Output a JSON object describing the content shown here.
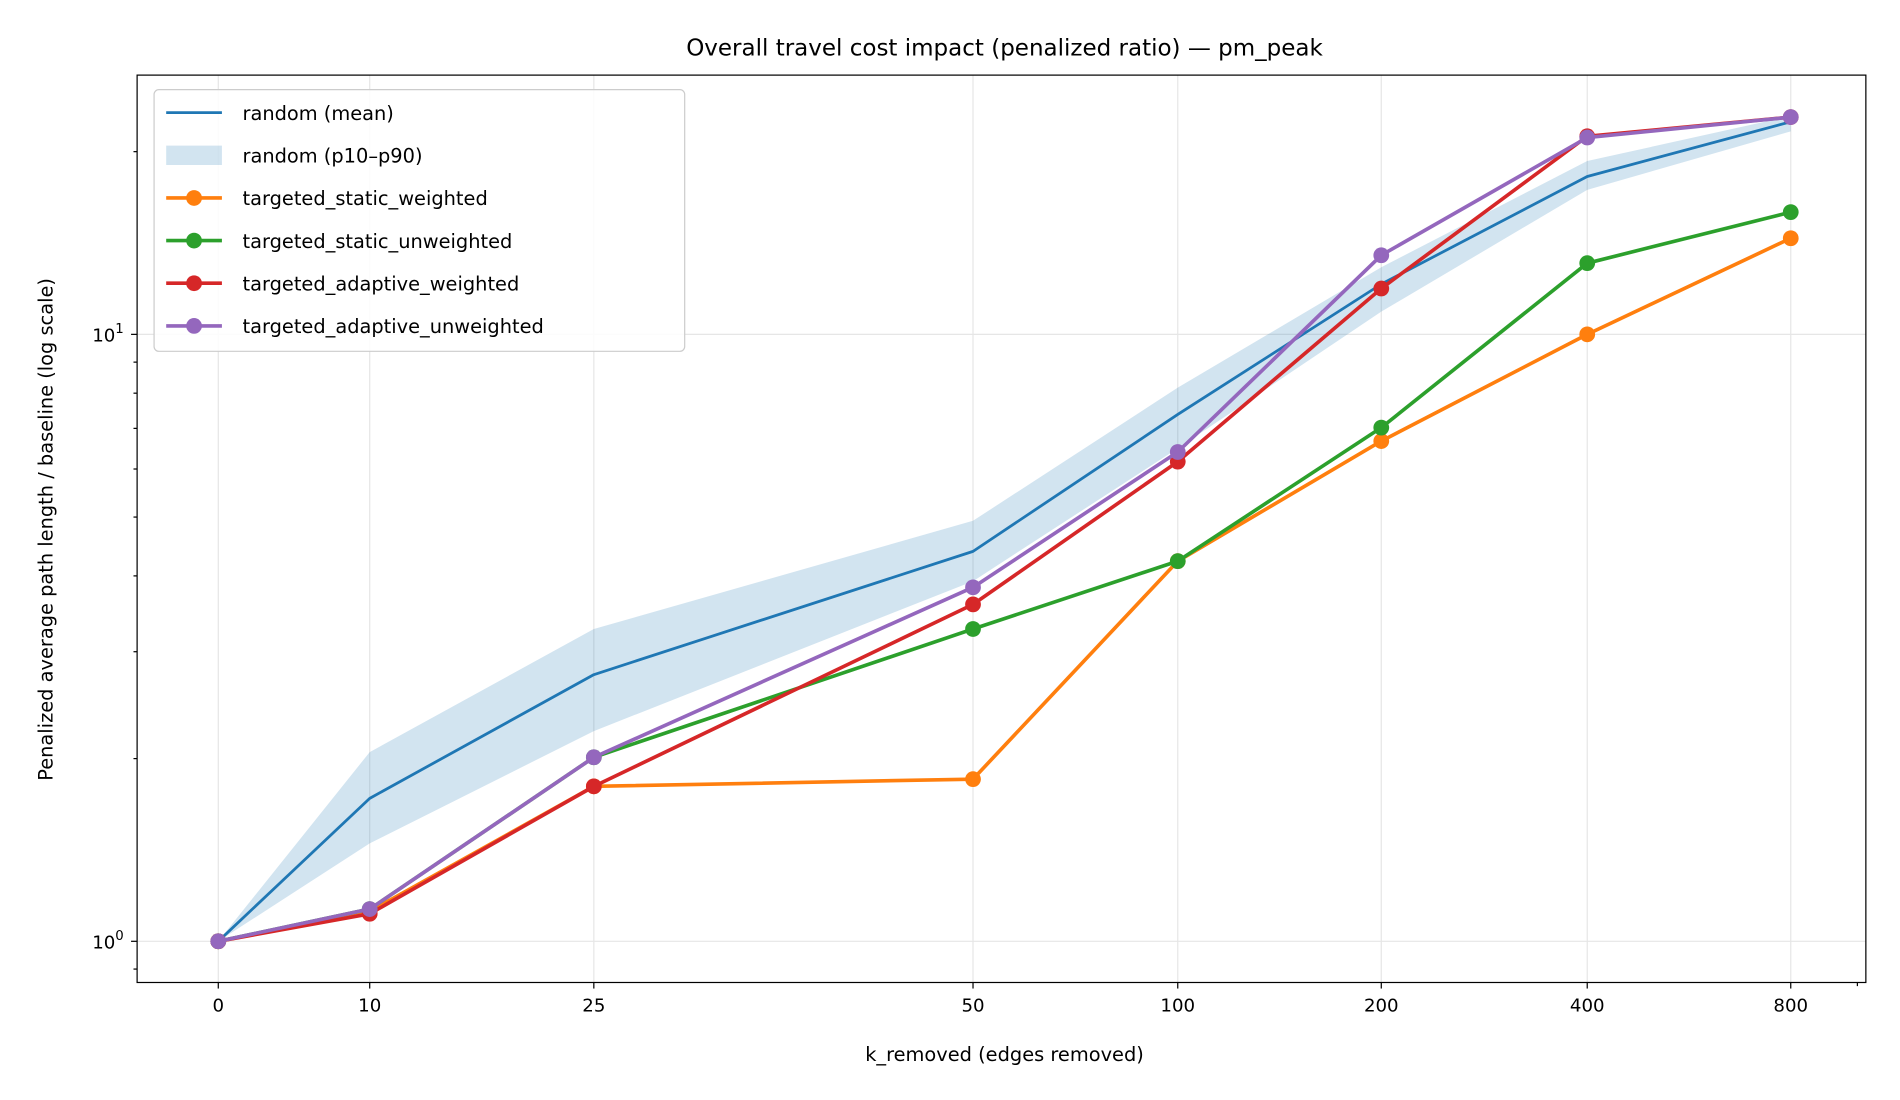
{
  "chart_data": {
    "type": "line",
    "title": "Overall travel cost impact (penalized ratio) — pm_peak",
    "xlabel": "k_removed (edges removed)",
    "ylabel": "Penalized average path length / baseline (log scale)",
    "x": [
      0,
      10,
      25,
      50,
      100,
      200,
      400,
      800
    ],
    "x_tick_labels": [
      "0",
      "10",
      "25",
      "50",
      "100",
      "200",
      "400",
      "800"
    ],
    "y_scale": "log",
    "ylim": [
      0.855,
      26.7
    ],
    "y_tick_labels": [
      {
        "base": "10",
        "exp": "0"
      },
      {
        "base": "10",
        "exp": "1"
      }
    ],
    "grid": true,
    "legend_placement": "top-left",
    "band": {
      "name": "random (p10–p90)",
      "color": "#1f77b4",
      "lower": [
        1.0,
        1.45,
        2.22,
        3.92,
        6.49,
        10.9,
        17.3,
        21.6
      ],
      "upper": [
        1.0,
        2.05,
        3.27,
        4.93,
        8.17,
        12.9,
        19.3,
        22.9
      ]
    },
    "series": [
      {
        "name": "random (mean)",
        "color": "#1f77b4",
        "markers": false,
        "values": [
          1.0,
          1.72,
          2.75,
          4.39,
          7.38,
          12.1,
          18.2,
          22.4
        ]
      },
      {
        "name": "targeted_static_weighted",
        "color": "#ff7f0e",
        "markers": true,
        "values": [
          1.0,
          1.12,
          1.8,
          1.85,
          4.23,
          6.67,
          10.0,
          14.4
        ]
      },
      {
        "name": "targeted_static_unweighted",
        "color": "#2ca02c",
        "markers": true,
        "values": [
          1.0,
          1.13,
          2.01,
          3.27,
          4.23,
          7.02,
          13.1,
          15.9
        ]
      },
      {
        "name": "targeted_adaptive_weighted",
        "color": "#d62728",
        "markers": true,
        "values": [
          1.0,
          1.11,
          1.8,
          3.59,
          6.17,
          11.9,
          21.2,
          22.8
        ]
      },
      {
        "name": "targeted_adaptive_unweighted",
        "color": "#9467bd",
        "markers": true,
        "values": [
          1.0,
          1.13,
          2.01,
          3.83,
          6.4,
          13.5,
          21.1,
          22.8
        ]
      }
    ]
  }
}
